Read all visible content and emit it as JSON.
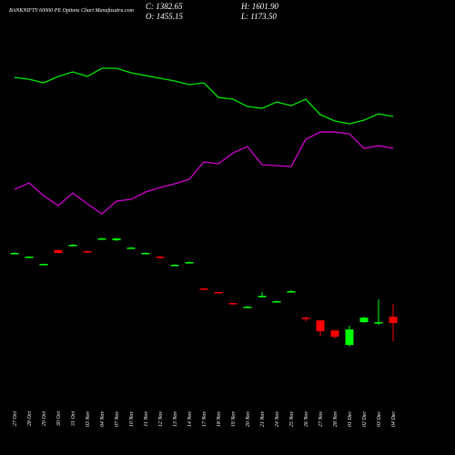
{
  "chart_data": {
    "type": "candlestick",
    "title": "BANKNIFTY 60000 PE Options Chart Munafasutra.com",
    "ohlc_text": {
      "close": "C: 1382.65",
      "high": "H: 1601.90",
      "open": "O: 1455.15",
      "low": "L: 1173.50"
    },
    "categories": [
      "27 Oct",
      "28 Oct",
      "29 Oct",
      "30 Oct",
      "31 Oct",
      "03 Nov",
      "04 Nov",
      "07 Nov",
      "10 Nov",
      "11 Nov",
      "12 Nov",
      "13 Nov",
      "14 Nov",
      "17 Nov",
      "18 Nov",
      "19 Nov",
      "20 Nov",
      "21 Nov",
      "24 Nov",
      "25 Nov",
      "26 Nov",
      "27 Nov",
      "28 Nov",
      "01 Dec",
      "02 Dec",
      "03 Dec",
      "04 Dec"
    ],
    "open": [
      2180,
      2140,
      2055,
      2218,
      2275,
      2208,
      2350,
      2333,
      2245,
      2182,
      2145,
      2047,
      2072,
      1780,
      1738,
      1612,
      1566,
      1685,
      1630,
      1744,
      1445,
      1413,
      1298,
      1131,
      1392,
      1392,
      1455.15
    ],
    "high": [
      2195,
      2150,
      2066,
      2228,
      2290,
      2212,
      2362,
      2360,
      2255,
      2195,
      2150,
      2058,
      2090,
      1776,
      1735,
      1608,
      1578,
      1737,
      1640,
      1760,
      1455,
      1413,
      1298,
      1351,
      1455,
      1654,
      1601.9
    ],
    "low": [
      2175,
      2136,
      2050,
      2180,
      2270,
      2190,
      2345,
      2325,
      2240,
      2175,
      2120,
      2042,
      2068,
      1760,
      1720,
      1595,
      1562,
      1674,
      1626,
      1740,
      1403,
      1236,
      1204,
      1110,
      1385,
      1361,
      1173.5
    ],
    "close": [
      2187,
      2145,
      2061,
      2187,
      2281,
      2197,
      2354,
      2354,
      2249,
      2187,
      2134,
      2051,
      2082,
      1769,
      1727,
      1601,
      1570,
      1695,
      1633,
      1748,
      1434,
      1288,
      1225,
      1309,
      1445,
      1392,
      1382.65
    ],
    "up_color": "#00ff00",
    "down_color": "#ff0000",
    "series": [
      {
        "color": "#00e600",
        "values": [
          4203,
          4182,
          4141,
          4214,
          4266,
          4214,
          4308,
          4308,
          4256,
          4224,
          4193,
          4162,
          4120,
          4141,
          3973,
          3953,
          3869,
          3848,
          3921,
          3879,
          3953,
          3775,
          3702,
          3670,
          3712,
          3785,
          3754
        ]
      },
      {
        "color": "#cc00cc",
        "values": [
          2918,
          2991,
          2845,
          2730,
          2876,
          2751,
          2636,
          2782,
          2803,
          2887,
          2939,
          2981,
          3033,
          3232,
          3211,
          3336,
          3409,
          3200,
          3190,
          3179,
          3493,
          3576,
          3576,
          3555,
          3388,
          3419,
          3388
        ]
      }
    ],
    "ylim": [
      -133,
      5092
    ]
  }
}
